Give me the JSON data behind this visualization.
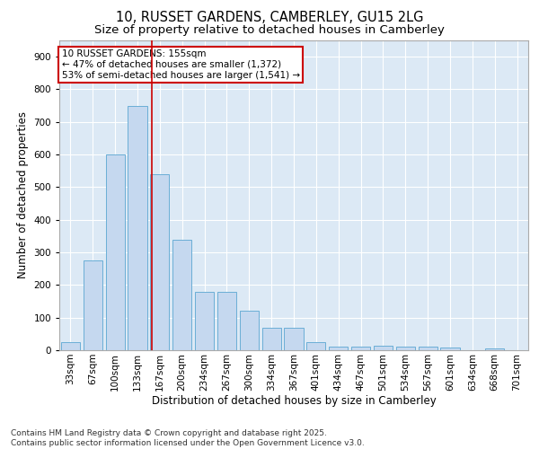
{
  "title1": "10, RUSSET GARDENS, CAMBERLEY, GU15 2LG",
  "title2": "Size of property relative to detached houses in Camberley",
  "xlabel": "Distribution of detached houses by size in Camberley",
  "ylabel": "Number of detached properties",
  "categories": [
    "33sqm",
    "67sqm",
    "100sqm",
    "133sqm",
    "167sqm",
    "200sqm",
    "234sqm",
    "267sqm",
    "300sqm",
    "334sqm",
    "367sqm",
    "401sqm",
    "434sqm",
    "467sqm",
    "501sqm",
    "534sqm",
    "567sqm",
    "601sqm",
    "634sqm",
    "668sqm",
    "701sqm"
  ],
  "values": [
    25,
    275,
    600,
    750,
    540,
    340,
    178,
    178,
    120,
    70,
    70,
    25,
    10,
    10,
    15,
    10,
    10,
    8,
    0,
    5,
    0
  ],
  "bar_color": "#c5d8ef",
  "bar_edge_color": "#6aaed6",
  "background_color": "#dce9f5",
  "grid_color": "#ffffff",
  "ylim": [
    0,
    950
  ],
  "yticks": [
    0,
    100,
    200,
    300,
    400,
    500,
    600,
    700,
    800,
    900
  ],
  "property_line_x": 3.65,
  "property_line_color": "#cc0000",
  "annotation_text": "10 RUSSET GARDENS: 155sqm\n← 47% of detached houses are smaller (1,372)\n53% of semi-detached houses are larger (1,541) →",
  "annotation_box_color": "#cc0000",
  "footer_text": "Contains HM Land Registry data © Crown copyright and database right 2025.\nContains public sector information licensed under the Open Government Licence v3.0.",
  "title_fontsize": 10.5,
  "subtitle_fontsize": 9.5,
  "axis_label_fontsize": 8.5,
  "tick_fontsize": 7.5,
  "annotation_fontsize": 7.5,
  "footer_fontsize": 6.5
}
